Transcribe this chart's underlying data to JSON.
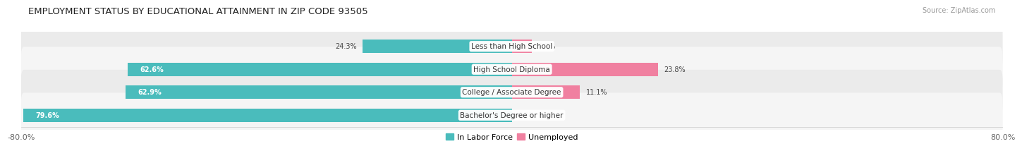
{
  "title": "EMPLOYMENT STATUS BY EDUCATIONAL ATTAINMENT IN ZIP CODE 93505",
  "source": "Source: ZipAtlas.com",
  "categories": [
    "Less than High School",
    "High School Diploma",
    "College / Associate Degree",
    "Bachelor's Degree or higher"
  ],
  "in_labor_force": [
    24.3,
    62.6,
    62.9,
    79.6
  ],
  "unemployed": [
    3.3,
    23.8,
    11.1,
    0.0
  ],
  "labor_color": "#4abcbc",
  "unemployed_color": "#f080a0",
  "row_colors_light": [
    "#ebebeb",
    "#f5f5f5",
    "#ebebeb",
    "#f5f5f5"
  ],
  "bar_height": 0.58,
  "xlim_left": -80.0,
  "xlim_right": 80.0,
  "x_left_label": "-80.0%",
  "x_right_label": "80.0%",
  "legend_labor": "In Labor Force",
  "legend_unemployed": "Unemployed",
  "title_fontsize": 9.5,
  "source_fontsize": 7,
  "label_fontsize_inside": 7,
  "label_fontsize_outside": 7,
  "cat_fontsize": 7.5
}
